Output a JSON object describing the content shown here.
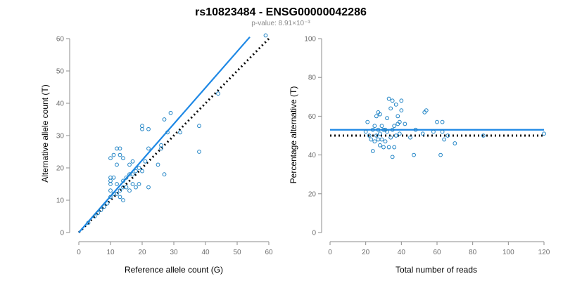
{
  "title": "rs10823484 - ENSG00000042286",
  "subtitle": "p-value: 8.91×10⁻³",
  "colors": {
    "points": "#1f83c5",
    "fit_line": "#1e88e5",
    "reference_line": "#000000",
    "axis": "#8c8c8c"
  },
  "chart_data": [
    {
      "type": "scatter",
      "title": "",
      "xlabel": "Reference allele count (G)",
      "ylabel": "Alternative allele count (T)",
      "xlim": [
        0,
        60
      ],
      "ylim": [
        0,
        60
      ],
      "xticks": [
        0,
        10,
        20,
        30,
        40,
        50,
        60
      ],
      "yticks": [
        0,
        10,
        20,
        30,
        40,
        50,
        60
      ],
      "grid": false,
      "points": {
        "x": [
          3,
          5,
          6,
          7,
          8,
          9,
          10,
          10,
          10,
          10,
          10,
          10,
          11,
          11,
          11,
          12,
          12,
          12,
          12,
          13,
          13,
          13,
          13,
          14,
          14,
          14,
          14,
          15,
          15,
          16,
          16,
          16,
          17,
          17,
          17,
          18,
          18,
          19,
          19,
          20,
          20,
          20,
          21,
          22,
          22,
          22,
          25,
          26,
          26,
          27,
          27,
          28,
          29,
          32,
          38,
          38,
          44,
          59
        ],
        "y": [
          3,
          5,
          6,
          7,
          8,
          9,
          11,
          13,
          15,
          16,
          17,
          23,
          12,
          17,
          24,
          12,
          15,
          21,
          26,
          11,
          13,
          24,
          26,
          10,
          14,
          16,
          23,
          14,
          17,
          13,
          18,
          21,
          15,
          18,
          22,
          14,
          19,
          15,
          20,
          19,
          32,
          33,
          22,
          14,
          26,
          32,
          21,
          27,
          26,
          18,
          35,
          31,
          37,
          31,
          25,
          33,
          43,
          61
        ]
      },
      "reference_line": {
        "style": "dotted",
        "x": [
          0,
          60
        ],
        "y": [
          0,
          60
        ]
      },
      "fit_line": {
        "style": "solid",
        "x": [
          0,
          54
        ],
        "y": [
          0,
          60.5
        ]
      }
    },
    {
      "type": "scatter",
      "title": "",
      "xlabel": "Total number of reads",
      "ylabel": "Percentage alternative (T)",
      "xlim": [
        0,
        120
      ],
      "ylim": [
        0,
        100
      ],
      "xticks": [
        0,
        20,
        40,
        60,
        80,
        100,
        120
      ],
      "yticks": [
        0,
        20,
        40,
        60,
        80,
        100
      ],
      "grid": false,
      "points": {
        "x": [
          20,
          21,
          22,
          23,
          24,
          24,
          25,
          25,
          26,
          26,
          27,
          27,
          27,
          28,
          28,
          28,
          29,
          29,
          30,
          30,
          31,
          31,
          32,
          32,
          33,
          33,
          34,
          34,
          35,
          35,
          35,
          36,
          36,
          37,
          37,
          38,
          38,
          39,
          39,
          40,
          40,
          42,
          45,
          47,
          48,
          52,
          53,
          54,
          58,
          60,
          62,
          63,
          63,
          64,
          66,
          70,
          86,
          120
        ],
        "y": [
          52,
          57,
          50,
          48,
          42,
          53,
          47,
          55,
          50,
          60,
          48,
          53,
          62,
          45,
          51,
          61,
          48,
          55,
          44,
          53,
          47,
          53,
          52,
          59,
          44,
          69,
          49,
          64,
          39,
          53,
          68,
          44,
          55,
          50,
          66,
          56,
          60,
          51,
          57,
          63,
          68,
          56,
          49,
          40,
          53,
          51,
          62,
          63,
          52,
          57,
          40,
          52,
          57,
          48,
          50,
          46,
          50,
          51
        ]
      },
      "reference_line": {
        "style": "dotted",
        "x": [
          0,
          120
        ],
        "y": [
          50,
          50
        ]
      },
      "fit_line": {
        "style": "solid",
        "x": [
          0,
          120
        ],
        "y": [
          53,
          53
        ]
      }
    }
  ]
}
